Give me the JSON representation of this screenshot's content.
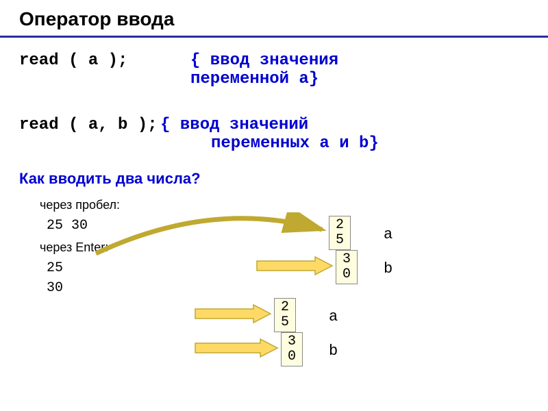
{
  "title": "Оператор ввода",
  "code1": {
    "stmt": "read ( a );",
    "comment_l1": "{ ввод значения",
    "comment_l2": "переменной a}"
  },
  "code2": {
    "stmt": "read ( a, b );",
    "comment_l1": "{ ввод значений",
    "comment_l2": "переменных a и b}"
  },
  "question": "Как вводить два числа?",
  "ex1": {
    "label": "через пробел:",
    "value": "25  30"
  },
  "ex2": {
    "label": "через Enter:",
    "value1": "25",
    "value2": "30"
  },
  "boxes": {
    "b1": "2\n5",
    "b2": "3\n0",
    "b3": "2\n5",
    "b4": "3\n0"
  },
  "vars": {
    "a": "a",
    "b": "b"
  },
  "colors": {
    "arrow_fill": "#ffd966",
    "arrow_stroke": "#bfa930",
    "curve_stroke": "#bfa930",
    "box_bg": "#fffde0",
    "box_border": "#888888"
  }
}
